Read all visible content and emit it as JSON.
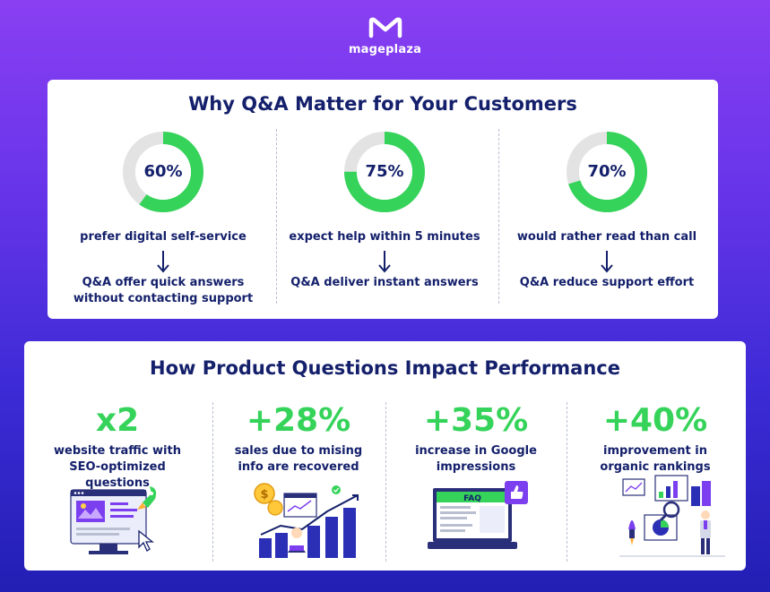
{
  "brand": {
    "name": "mageplaza",
    "logo_icon": "mageplaza-m-logo"
  },
  "section1": {
    "title": "Why Q&A Matter for Your Customers",
    "items": [
      {
        "percent": "60%",
        "value": 60,
        "stat": "prefer digital self-service",
        "answer": "Q&A offer quick answers without contacting support"
      },
      {
        "percent": "75%",
        "value": 75,
        "stat": "expect help within 5 minutes",
        "answer": "Q&A deliver instant answers"
      },
      {
        "percent": "70%",
        "value": 70,
        "stat": "would rather read than call",
        "answer": "Q&A reduce support effort"
      }
    ]
  },
  "section2": {
    "title": "How Product Questions Impact Performance",
    "items": [
      {
        "value": "x2",
        "text": "website traffic with SEO-optimized questions",
        "illustration": "website-rocket-illustration"
      },
      {
        "value": "+28%",
        "text": "sales due to mising info are recovered",
        "illustration": "sales-growth-illustration"
      },
      {
        "value": "+35%",
        "text": "increase in Google impressions",
        "illustration": "faq-laptop-illustration",
        "faq_label": "FAQ"
      },
      {
        "value": "+40%",
        "text": "improvement in organic rankings",
        "illustration": "analytics-ranking-illustration"
      }
    ]
  },
  "colors": {
    "accent_green": "#35d35a",
    "navy": "#14206b",
    "ring_gray": "#e3e3e3",
    "purple": "#7b3ff0"
  }
}
